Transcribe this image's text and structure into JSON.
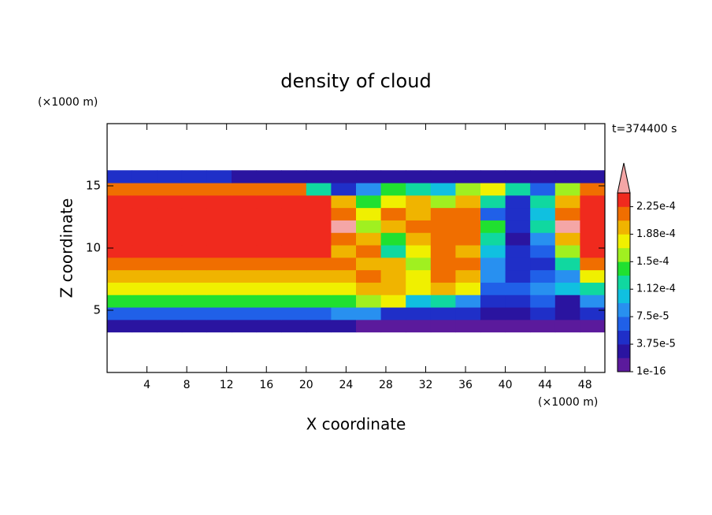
{
  "chart_data": {
    "type": "contour",
    "title": "density of cloud",
    "x_unit": "(×1000 m)",
    "y_unit": "(×1000 m)",
    "time_label": "t=374400 s",
    "x_label": "X coordinate",
    "y_label": "Z coordinate",
    "xlim": [
      0,
      50
    ],
    "ylim": [
      0,
      20
    ],
    "xticks": [
      4,
      8,
      12,
      16,
      20,
      24,
      28,
      32,
      36,
      40,
      44,
      48
    ],
    "yticks": [
      5,
      10,
      15
    ],
    "x": [
      1.25,
      3.75,
      6.25,
      8.75,
      11.25,
      13.75,
      16.25,
      18.75,
      21.25,
      23.75,
      26.25,
      28.75,
      31.25,
      33.75,
      36.25,
      38.75,
      41.25,
      43.75,
      46.25,
      48.75
    ],
    "z": [
      3.75,
      4.75,
      5.75,
      6.75,
      7.75,
      8.75,
      9.75,
      10.75,
      11.75,
      12.75,
      13.75,
      14.75,
      15.75
    ],
    "values": [
      [
        2e-05,
        2e-05,
        2e-05,
        2e-05,
        2e-05,
        2e-05,
        2e-05,
        2e-05,
        2e-05,
        2e-05,
        1e-05,
        1e-05,
        1e-05,
        1e-05,
        1e-05,
        1e-05,
        1e-05,
        1e-05,
        1e-05,
        1e-05
      ],
      [
        7e-05,
        7e-05,
        7e-05,
        7e-05,
        7e-05,
        7e-05,
        7e-05,
        7e-05,
        7e-05,
        8e-05,
        9e-05,
        5e-05,
        4e-05,
        5e-05,
        4e-05,
        3e-05,
        3e-05,
        4e-05,
        3e-05,
        4e-05
      ],
      [
        0.00014,
        0.00014,
        0.00014,
        0.00014,
        0.00014,
        0.00014,
        0.00014,
        0.00014,
        0.00014,
        0.00015,
        0.00016,
        0.00017,
        0.0001,
        0.00012,
        8e-05,
        5e-05,
        4e-05,
        6e-05,
        3e-05,
        8e-05
      ],
      [
        0.00018,
        0.00018,
        0.00018,
        0.00018,
        0.00018,
        0.00018,
        0.00018,
        0.00018,
        0.00018,
        0.00018,
        0.00019,
        0.0002,
        0.00017,
        0.00019,
        0.00017,
        6e-05,
        6e-05,
        8e-05,
        0.0001,
        0.00012
      ],
      [
        0.0002,
        0.0002,
        0.0002,
        0.0002,
        0.0002,
        0.0002,
        0.0002,
        0.0002,
        0.0002,
        0.0002,
        0.00021,
        0.0002,
        0.00018,
        0.00021,
        0.0002,
        8e-05,
        5e-05,
        6e-05,
        8e-05,
        0.00018
      ],
      [
        0.00022,
        0.00022,
        0.00022,
        0.00022,
        0.00022,
        0.00022,
        0.00022,
        0.00022,
        0.00022,
        0.00021,
        0.0002,
        0.00019,
        0.00016,
        0.00021,
        0.00021,
        9e-05,
        4e-05,
        4e-05,
        0.00012,
        0.00022
      ],
      [
        0.00023,
        0.00023,
        0.00023,
        0.00023,
        0.00023,
        0.00023,
        0.00023,
        0.00023,
        0.00023,
        0.0002,
        0.00021,
        0.00012,
        0.00018,
        0.00021,
        0.0002,
        0.0001,
        4e-05,
        6e-05,
        0.00016,
        0.00023
      ],
      [
        0.00023,
        0.00023,
        0.00023,
        0.00023,
        0.00023,
        0.00023,
        0.00023,
        0.00023,
        0.00023,
        0.00022,
        0.00019,
        0.00014,
        0.0002,
        0.00022,
        0.00021,
        0.00012,
        3e-05,
        8e-05,
        0.0002,
        0.00023
      ],
      [
        0.00023,
        0.00023,
        0.00023,
        0.00023,
        0.00023,
        0.00023,
        0.00023,
        0.00023,
        0.00023,
        0.00025,
        0.00016,
        0.0002,
        0.00021,
        0.00022,
        0.00021,
        0.00015,
        4e-05,
        0.00012,
        0.00025,
        0.00023
      ],
      [
        0.00023,
        0.00023,
        0.00023,
        0.00023,
        0.00023,
        0.00023,
        0.00023,
        0.00023,
        0.00023,
        0.00021,
        0.00017,
        0.00021,
        0.00019,
        0.00021,
        0.00022,
        6e-05,
        4e-05,
        0.0001,
        0.00021,
        0.00023
      ],
      [
        0.00023,
        0.00023,
        0.00023,
        0.00023,
        0.00023,
        0.00023,
        0.00023,
        0.00023,
        0.00023,
        0.0002,
        0.00014,
        0.00018,
        0.0002,
        0.00016,
        0.00019,
        0.00012,
        5e-05,
        0.00012,
        0.0002,
        0.00023
      ],
      [
        0.00021,
        0.00021,
        0.00021,
        0.00021,
        0.00021,
        0.00021,
        0.00021,
        0.00021,
        0.00012,
        5e-05,
        8e-05,
        0.00015,
        0.00012,
        0.0001,
        0.00016,
        0.00018,
        0.00012,
        6e-05,
        0.00016,
        0.00022
      ],
      [
        5e-05,
        5e-05,
        5e-05,
        5e-05,
        5e-05,
        2e-05,
        2e-05,
        2e-05,
        2e-05,
        2e-05,
        2e-05,
        2e-05,
        2e-05,
        2e-05,
        2e-05,
        2e-05,
        2e-05,
        2e-05,
        2e-05,
        2e-05
      ]
    ],
    "colorbar": {
      "lim": [
        1e-16,
        0.00024375
      ],
      "colors": [
        "#5b1a9c",
        "#2a14a0",
        "#1f2fc8",
        "#2060e8",
        "#2890f0",
        "#10c0e0",
        "#10d8a0",
        "#20e030",
        "#a0f020",
        "#f0f000",
        "#f0b400",
        "#f06e00",
        "#f02a1e"
      ],
      "extend_color": "#f4a6a6",
      "ticks": [
        {
          "value": 1e-16,
          "label": "1e-16"
        },
        {
          "value": 3.75e-05,
          "label": "3.75e-5"
        },
        {
          "value": 7.5e-05,
          "label": "7.5e-5"
        },
        {
          "value": 0.0001125,
          "label": "1.12e-4"
        },
        {
          "value": 0.00015,
          "label": "1.5e-4"
        },
        {
          "value": 0.0001875,
          "label": "1.88e-4"
        },
        {
          "value": 0.000225,
          "label": "2.25e-4"
        }
      ]
    }
  }
}
